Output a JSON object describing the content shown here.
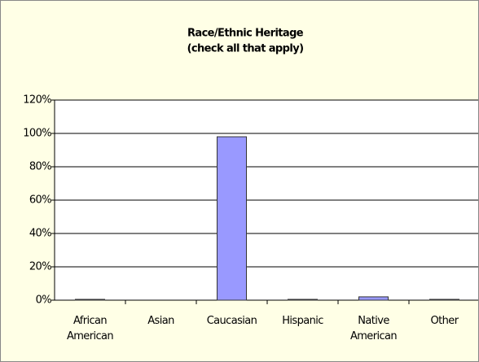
{
  "chart_data": {
    "type": "bar",
    "title": "Race/Ethnic Heritage",
    "subtitle": "(check all that apply)",
    "categories": [
      "African American",
      "Asian",
      "Caucasian",
      "Hispanic",
      "Native American",
      "Other"
    ],
    "values": [
      0.5,
      0,
      98,
      0.5,
      2,
      0.5
    ],
    "color": "#9999ff",
    "ylim": [
      0,
      120
    ],
    "yticks": [
      {
        "value": 0,
        "label": "0%"
      },
      {
        "value": 20,
        "label": "20%"
      },
      {
        "value": 40,
        "label": "40%"
      },
      {
        "value": 60,
        "label": "60%"
      },
      {
        "value": 80,
        "label": "80%"
      },
      {
        "value": 100,
        "label": "100%"
      },
      {
        "value": 120,
        "label": "120%"
      }
    ],
    "grid": true
  }
}
